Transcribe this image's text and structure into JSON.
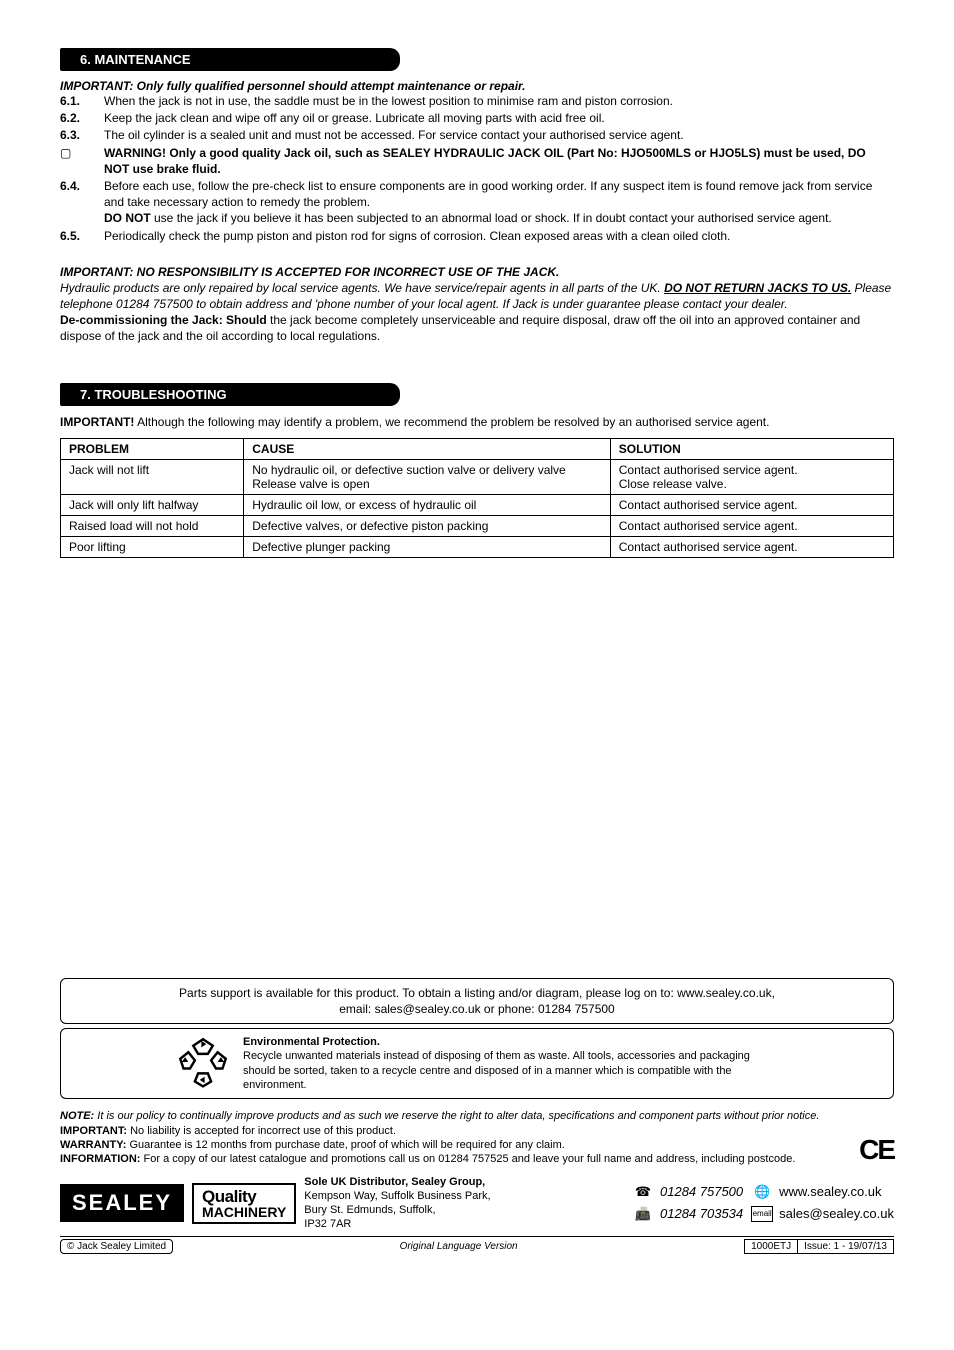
{
  "section6": {
    "header": "6.   MAINTENANCE",
    "important1": "IMPORTANT: Only fully qualified personnel should attempt maintenance or repair.",
    "items": {
      "n61": "6.1.",
      "t61": "When the jack is not in use, the saddle must be in the lowest position to minimise ram and piston corrosion.",
      "n62": "6.2.",
      "t62": "Keep the jack clean and wipe off any oil or grease. Lubricate all moving parts with acid free oil.",
      "n63": "6.3.",
      "t63": "The oil cylinder is a sealed unit and must not be accessed. For service contact your authorised service agent.",
      "warn_icon": "▢",
      "warn": "WARNING! Only a good quality Jack oil, such as SEALEY HYDRAULIC JACK OIL (Part No: HJO500MLS or HJO5LS) must be used, DO NOT use brake fluid.",
      "n64": "6.4.",
      "t64a": "Before each use, follow the pre-check list to ensure components are in good working order. If any suspect item is found remove jack from service and take necessary action to remedy the problem.",
      "t64b_pre": "DO NOT",
      "t64b_post": " use the jack if you believe it has been subjected to an abnormal load or shock. If in doubt contact your authorised service agent.",
      "n65": "6.5.",
      "t65": "Periodically check the pump piston and piston rod for signs of corrosion. Clean exposed areas with a clean oiled cloth."
    },
    "important2": "IMPORTANT: NO RESPONSIBILITY IS ACCEPTED FOR INCORRECT USE OF THE JACK.",
    "hydraulic_a": "Hydraulic products are only repaired by local service agents. We have service/repair agents in all parts of the UK. ",
    "hydraulic_b": "DO NOT RETURN JACKS TO US.",
    "hydraulic_c": " Please telephone 01284 757500 to obtain address and 'phone number of your local agent. If Jack is under guarantee please contact your dealer.",
    "decomm_pre": "De-commissioning the Jack: Should",
    "decomm_post": " the jack become completely unserviceable and require disposal, draw off the oil into an approved container and dispose of the jack and the oil according to local regulations."
  },
  "section7": {
    "header": "7.   TROUBLESHOOTING",
    "intro_pre": "IMPORTANT!",
    "intro_post": " Although the following may identify a problem, we recommend the problem be resolved by an authorised service agent."
  },
  "table": {
    "headers": {
      "c1": "PROBLEM",
      "c2": "CAUSE",
      "c3": "SOLUTION"
    },
    "rows": [
      {
        "c1": "Jack will not lift",
        "c2": "No hydraulic oil, or defective suction valve or delivery valve\nRelease valve is open",
        "c3": "Contact authorised service agent.\nClose release valve."
      },
      {
        "c1": "Jack will only lift halfway",
        "c2": "Hydraulic oil low, or excess of hydraulic oil",
        "c3": "Contact authorised service agent."
      },
      {
        "c1": "Raised load will not hold",
        "c2": "Defective valves, or defective piston packing",
        "c3": "Contact authorised service agent."
      },
      {
        "c1": "Poor lifting",
        "c2": "Defective plunger packing",
        "c3": "Contact authorised service agent."
      }
    ]
  },
  "parts_box": {
    "line1": "Parts support is available for this product. To obtain a listing and/or diagram, please log on to: www.sealey.co.uk,",
    "line2": "email: sales@sealey.co.uk or phone: 01284 757500"
  },
  "env": {
    "title": "Environmental Protection.",
    "body": "Recycle unwanted materials instead of disposing of them as waste. All tools, accessories and packaging should be sorted, taken to a recycle centre and disposed of in a manner which is compatible with the environment."
  },
  "notes": {
    "note_pre": "NOTE:",
    "note_post": " It is our policy to continually improve products and as such we reserve the right to alter data, specifications and component parts without prior notice.",
    "important_pre": "IMPORTANT:",
    "important_post": " No liability is accepted for incorrect use of this product.",
    "warranty_pre": "WARRANTY:",
    "warranty_post": " Guarantee is 12 months from purchase date, proof of which will be required for any claim.",
    "info_pre": "INFORMATION:",
    "info_post": " For a copy of our latest catalogue and promotions call us on 01284 757525 and leave your full name and address, including postcode.",
    "ce": "CE"
  },
  "footer": {
    "logo": "SEALEY",
    "qm1": "Quality",
    "qm2": "MACHINERY",
    "addr_bold": "Sole UK Distributor, Sealey Group,",
    "addr2": "Kempson Way, Suffolk Business Park,",
    "addr3": "Bury St. Edmunds, Suffolk,",
    "addr4": "IP32 7AR",
    "tel": "01284 757500",
    "fax": "01284 703534",
    "web": "www.sealey.co.uk",
    "email": "sales@sealey.co.uk",
    "tel_icon": "☎",
    "fax_icon": "📠",
    "web_icon": "🌐",
    "email_label": "email"
  },
  "bottom": {
    "copyright": "© Jack Sealey Limited",
    "center": "Original Language Version",
    "model": "1000ETJ",
    "issue": "Issue: 1 - 19/07/13"
  }
}
